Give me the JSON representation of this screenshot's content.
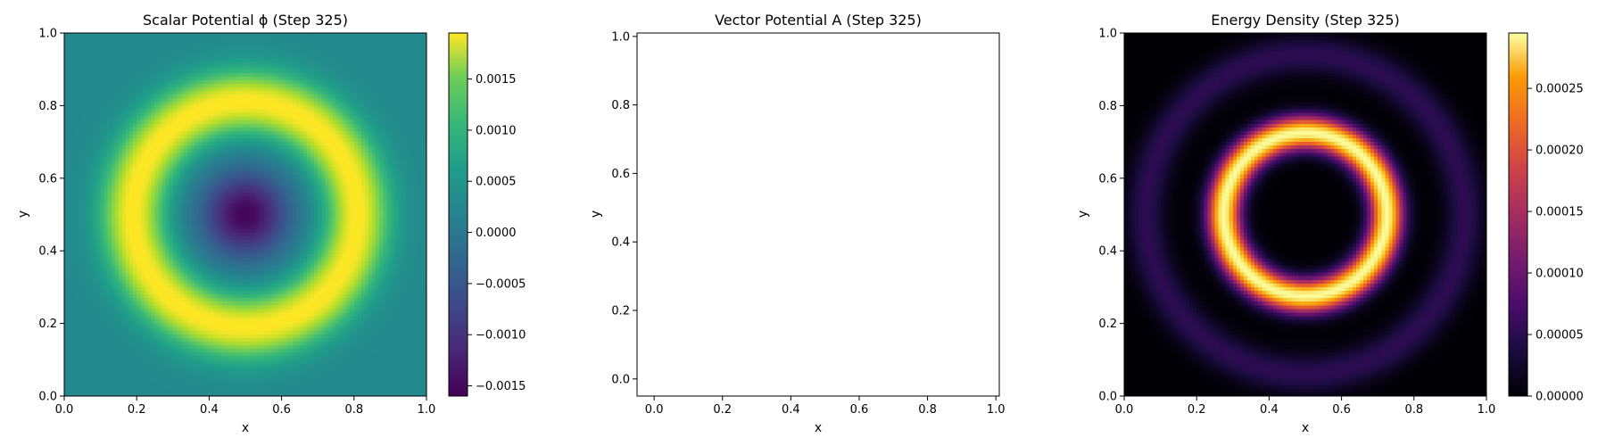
{
  "chart_data": [
    {
      "type": "heatmap",
      "title": "Scalar Potential ϕ (Step 325)",
      "xlabel": "x",
      "ylabel": "y",
      "xlim": [
        0.0,
        1.0
      ],
      "ylim": [
        0.0,
        1.0
      ],
      "xticks": [
        "0.0",
        "0.2",
        "0.4",
        "0.6",
        "0.8",
        "1.0"
      ],
      "yticks": [
        "0.0",
        "0.2",
        "0.4",
        "0.6",
        "0.8",
        "1.0"
      ],
      "colormap": "viridis",
      "field": "radial ring: minimum at center, maximum ring near radius 0.3",
      "colorbar": {
        "min": -0.0016,
        "max": 0.00195,
        "ticks": [
          "−0.0015",
          "−0.0010",
          "−0.0005",
          "0.0000",
          "0.0005",
          "0.0010",
          "0.0015"
        ]
      },
      "grid": false
    },
    {
      "type": "scatter",
      "title": "Vector Potential A (Step 325)",
      "xlabel": "x",
      "ylabel": "y",
      "xlim": [
        -0.05,
        1.01
      ],
      "ylim": [
        -0.05,
        1.01
      ],
      "xticks": [
        "0.0",
        "0.2",
        "0.4",
        "0.6",
        "0.8",
        "1.0"
      ],
      "yticks": [
        "0.0",
        "0.2",
        "0.4",
        "0.6",
        "0.8",
        "1.0"
      ],
      "series": [],
      "grid": false
    },
    {
      "type": "heatmap",
      "title": "Energy Density (Step 325)",
      "xlabel": "x",
      "ylabel": "y",
      "xlim": [
        0.0,
        1.0
      ],
      "ylim": [
        0.0,
        1.0
      ],
      "xticks": [
        "0.0",
        "0.2",
        "0.4",
        "0.6",
        "0.8",
        "1.0"
      ],
      "yticks": [
        "0.0",
        "0.2",
        "0.4",
        "0.6",
        "0.8",
        "1.0"
      ],
      "colormap": "inferno",
      "field": "bright ring near radius 0.23, faint outer ring near radius 0.45",
      "colorbar": {
        "min": 0.0,
        "max": 0.000295,
        "ticks": [
          "0.00000",
          "0.00005",
          "0.00010",
          "0.00015",
          "0.00020",
          "0.00025"
        ]
      },
      "grid": false
    }
  ]
}
